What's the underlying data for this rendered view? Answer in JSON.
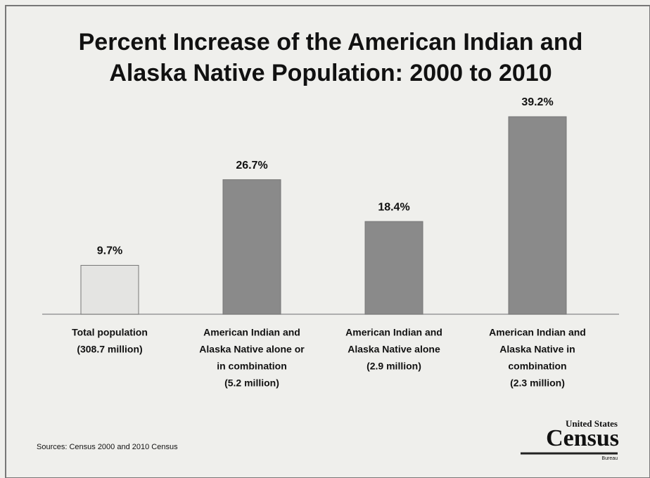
{
  "chart_data": {
    "type": "bar",
    "title": [
      "Percent Increase of the American Indian and",
      "Alaska Native Population: 2000 to 2010"
    ],
    "categories": [
      [
        "Total population",
        "(308.7 million)"
      ],
      [
        "American Indian and",
        "Alaska Native alone or",
        "in combination",
        "(5.2 million)"
      ],
      [
        "American Indian and",
        "Alaska Native alone",
        "(2.9 million)"
      ],
      [
        "American Indian and",
        "Alaska Native  in",
        "combination",
        "(2.3 million)"
      ]
    ],
    "values": [
      9.7,
      26.7,
      18.4,
      39.2
    ],
    "value_labels": [
      "9.7%",
      "26.7%",
      "18.4%",
      "39.2%"
    ],
    "colors": [
      "#e4e4e2",
      "#8a8a8a",
      "#8a8a8a",
      "#8a8a8a"
    ],
    "source": "Sources: Census 2000 and 2010 Census",
    "logo": {
      "top": "United States",
      "main": "Census",
      "bottom": "Bureau"
    }
  }
}
